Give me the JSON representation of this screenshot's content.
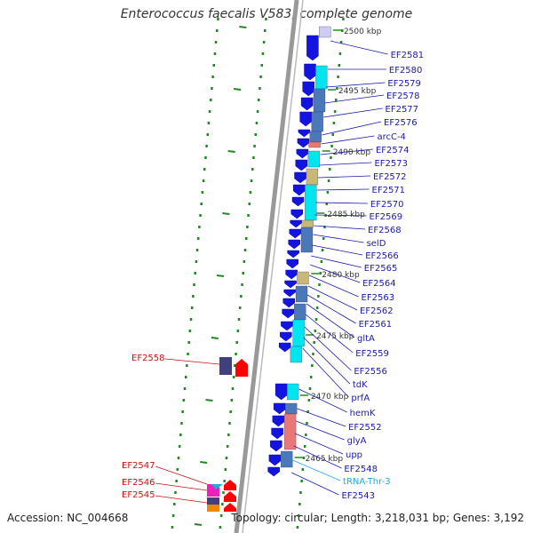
{
  "title": "Enterococcus faecalis V583, complete genome",
  "footer": {
    "accession": "Accession: NC_004668",
    "summary": "Topology: circular; Length: 3,218,031 bp; Genes: 3,192"
  },
  "colors": {
    "gene_blue": "#1414e0",
    "forward_label": "#1a1aaa",
    "reverse_label": "#cc1111",
    "rna_label": "#22aadd",
    "cyan": "#00e5ee",
    "steel": "#4a78b8",
    "salmon": "#e87878",
    "khaki": "#c8b878",
    "lavender": "#ccccf4",
    "magenta": "#ee1fbb",
    "dark_purple": "#40407e",
    "red": "#ff0000",
    "orange": "#ee8800",
    "backbone": "#999999",
    "ruler": "#228822"
  },
  "kbp_markers": [
    "2500 kbp",
    "2495 kbp",
    "2490 kbp",
    "2485 kbp",
    "2480 kbp",
    "2475 kbp",
    "2470 kbp",
    "2465 kbp"
  ],
  "forward_genes": [
    "EF2581",
    "EF2580",
    "EF2579",
    "EF2578",
    "EF2577",
    "EF2576",
    "arcC-4",
    "EF2574",
    "EF2573",
    "EF2572",
    "EF2571",
    "EF2570",
    "EF2569",
    "EF2568",
    "selD",
    "EF2566",
    "EF2565",
    "EF2564",
    "EF2563",
    "EF2562",
    "EF2561",
    "gltA",
    "EF2559",
    "EF2556",
    "tdK",
    "prfA",
    "hemK",
    "EF2552",
    "glyA",
    "upp",
    "EF2548",
    "tRNA-Thr-3",
    "EF2543"
  ],
  "reverse_genes": [
    "EF2558",
    "EF2547",
    "EF2546",
    "EF2545"
  ]
}
